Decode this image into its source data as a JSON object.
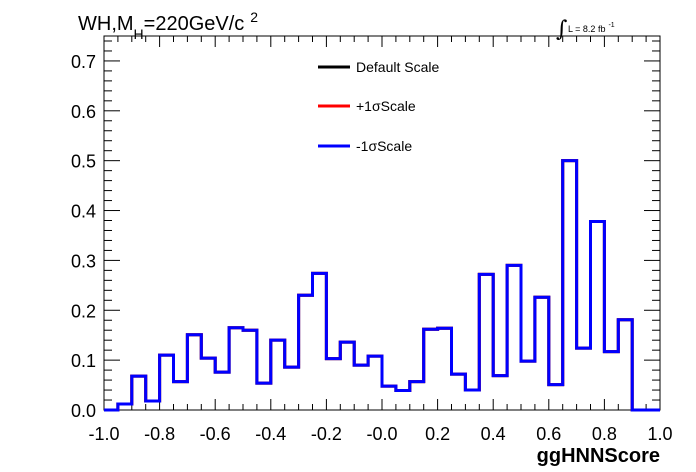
{
  "chart_data": {
    "type": "line",
    "title_main": "WH,M",
    "title_sub": "H",
    "title_rest": "=220GeV/c",
    "title_sup": "2",
    "lumi_prefix": "L = 8.2 fb",
    "lumi_sup": "-1",
    "xlabel": "ggHNNScore",
    "ylabel": "",
    "xlim": [
      -1.0,
      1.0
    ],
    "ylim": [
      0.0,
      0.75
    ],
    "x_ticks": [
      "-1.0",
      "-0.8",
      "-0.6",
      "-0.4",
      "-0.2",
      "-0.0",
      "0.2",
      "0.4",
      "0.6",
      "0.8",
      "1.0"
    ],
    "y_ticks": [
      "0.0",
      "0.1",
      "0.2",
      "0.3",
      "0.4",
      "0.5",
      "0.6",
      "0.7"
    ],
    "bin_edges": [
      -1.0,
      -0.95,
      -0.9,
      -0.85,
      -0.8,
      -0.75,
      -0.7,
      -0.65,
      -0.6,
      -0.55,
      -0.5,
      -0.45,
      -0.4,
      -0.35,
      -0.3,
      -0.25,
      -0.2,
      -0.15,
      -0.1,
      -0.05,
      0.0,
      0.05,
      0.1,
      0.15,
      0.2,
      0.25,
      0.3,
      0.35,
      0.4,
      0.45,
      0.5,
      0.55,
      0.6,
      0.65,
      0.7,
      0.75,
      0.8,
      0.85,
      0.9,
      0.95,
      1.0
    ],
    "series": [
      {
        "name": "Default Scale",
        "color": "#000000",
        "values": [
          0.0,
          0.012,
          0.068,
          0.018,
          0.11,
          0.057,
          0.151,
          0.104,
          0.076,
          0.165,
          0.16,
          0.054,
          0.14,
          0.086,
          0.23,
          0.274,
          0.103,
          0.136,
          0.09,
          0.108,
          0.048,
          0.039,
          0.057,
          0.162,
          0.164,
          0.072,
          0.04,
          0.272,
          0.069,
          0.29,
          0.098,
          0.226,
          0.051,
          0.5,
          0.124,
          0.378,
          0.117,
          0.181,
          0.0,
          0.0
        ]
      },
      {
        "name": "+1σScale",
        "color": "#ff0000",
        "values": [
          0.0,
          0.012,
          0.068,
          0.018,
          0.11,
          0.057,
          0.151,
          0.104,
          0.076,
          0.165,
          0.16,
          0.054,
          0.14,
          0.086,
          0.23,
          0.274,
          0.103,
          0.136,
          0.09,
          0.108,
          0.048,
          0.039,
          0.057,
          0.162,
          0.164,
          0.072,
          0.04,
          0.272,
          0.069,
          0.29,
          0.098,
          0.226,
          0.051,
          0.5,
          0.124,
          0.378,
          0.117,
          0.181,
          0.0,
          0.0
        ]
      },
      {
        "name": "-1σScale",
        "color": "#0000ff",
        "values": [
          0.0,
          0.012,
          0.068,
          0.018,
          0.11,
          0.057,
          0.151,
          0.104,
          0.076,
          0.165,
          0.16,
          0.054,
          0.14,
          0.086,
          0.23,
          0.274,
          0.103,
          0.136,
          0.09,
          0.108,
          0.048,
          0.039,
          0.057,
          0.162,
          0.164,
          0.072,
          0.04,
          0.272,
          0.069,
          0.29,
          0.098,
          0.226,
          0.051,
          0.5,
          0.124,
          0.378,
          0.117,
          0.181,
          0.0,
          0.0
        ]
      }
    ],
    "legend_position": "top-center",
    "grid": false
  }
}
